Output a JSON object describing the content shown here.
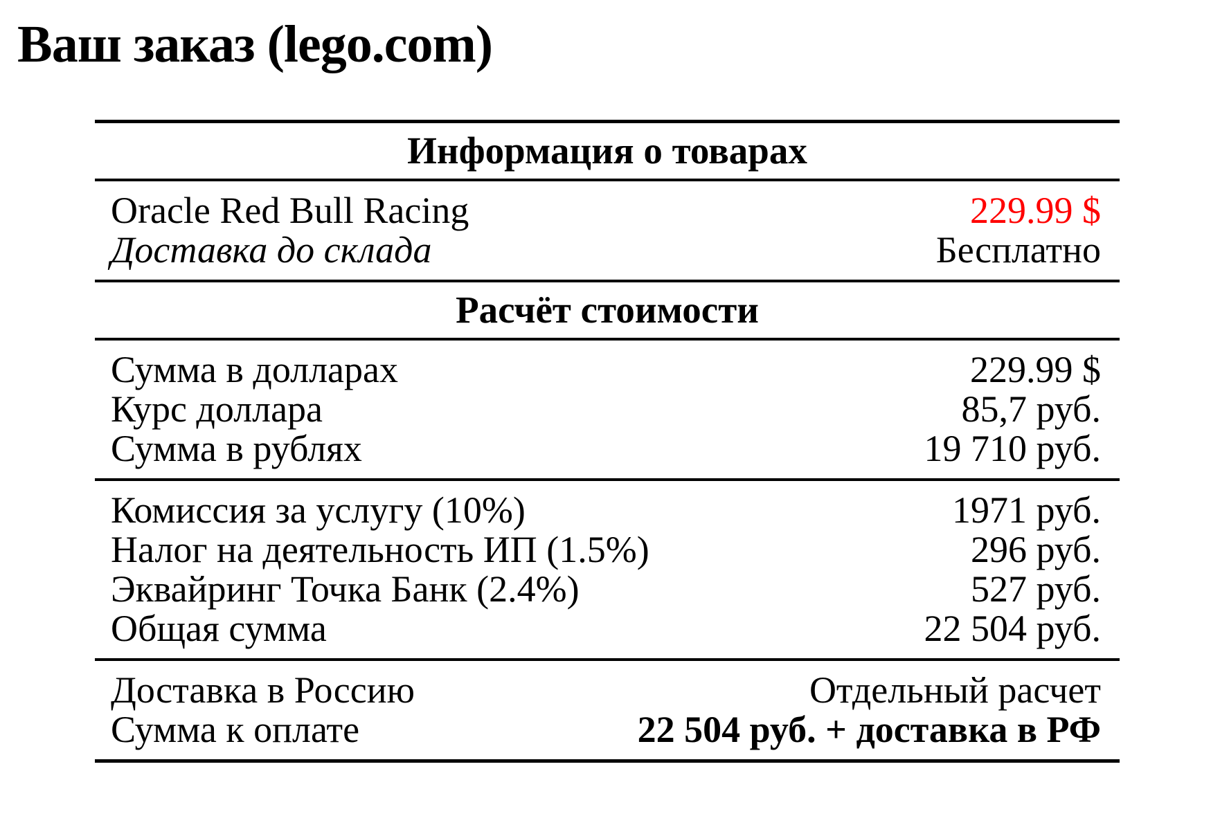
{
  "title": "Ваш заказ (lego.com)",
  "colors": {
    "price_red": "#ff0000",
    "text": "#000000",
    "background": "#ffffff"
  },
  "table": {
    "section1_header": "Информация о товарах",
    "section2_header": "Расчёт стоимости",
    "products": {
      "rows": [
        {
          "label": "Oracle Red Bull Racing",
          "value": "229.99 $"
        },
        {
          "label": "Доставка до склада",
          "value": "Бесплатно"
        }
      ]
    },
    "conversion": {
      "rows": [
        {
          "label": "Сумма в долларах",
          "value": "229.99 $"
        },
        {
          "label": "Курс доллара",
          "value": "85,7 руб."
        },
        {
          "label": "Сумма в рублях",
          "value": "19 710 руб."
        }
      ]
    },
    "fees": {
      "rows": [
        {
          "label": "Комиссия за услугу (10%)",
          "value": "1971 руб."
        },
        {
          "label": "Налог на деятельность ИП (1.5%)",
          "value": "296 руб."
        },
        {
          "label": "Эквайринг Точка Банк (2.4%)",
          "value": "527 руб."
        },
        {
          "label": "Общая сумма",
          "value": "22 504 руб."
        }
      ]
    },
    "totals": {
      "rows": [
        {
          "label": "Доставка в Россию",
          "value": "Отдельный расчет"
        },
        {
          "label": "Сумма к оплате",
          "value": "22 504 руб. + доставка в РФ"
        }
      ]
    }
  }
}
